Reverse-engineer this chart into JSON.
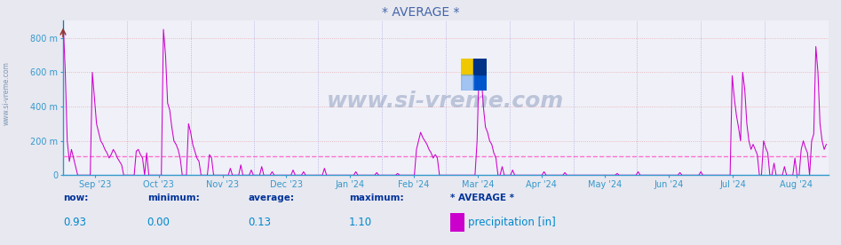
{
  "title": "* AVERAGE *",
  "y_ticks": [
    0,
    200,
    400,
    600,
    800
  ],
  "y_tick_labels": [
    "0",
    "200 m",
    "400 m",
    "600 m",
    "800 m"
  ],
  "ylim": [
    0,
    900
  ],
  "x_tick_labels": [
    "Sep '23",
    "Oct '23",
    "Nov '23",
    "Dec '23",
    "Jan '24",
    "Feb '24",
    "Mar '24",
    "Apr '24",
    "May '24",
    "Jun '24",
    "Jul '24",
    "Aug '24"
  ],
  "line_color": "#cc00cc",
  "average_line_color": "#ff66cc",
  "average_line_value": 113,
  "bg_color": "#e8e8f0",
  "plot_bg_color": "#f0f0f8",
  "grid_h_color": "#e8aaaa",
  "grid_v_color": "#aaaadd",
  "title_color": "#4466aa",
  "axis_color": "#3399cc",
  "spine_color": "#3399cc",
  "watermark": "www.si-vreme.com",
  "watermark_color": "#8899bb",
  "stats_label_color": "#003399",
  "stats_val_color": "#0088cc",
  "stats_labels": [
    "now:",
    "minimum:",
    "average:",
    "maximum:",
    "* AVERAGE *"
  ],
  "stats_values": [
    "0.93",
    "0.00",
    "0.13",
    "1.10"
  ],
  "legend_label": "precipitation [in]",
  "legend_color": "#cc00cc",
  "sidebar_text": "www.si-vreme.com",
  "sidebar_color": "#6688aa",
  "logo_yellow": "#f0c800",
  "logo_blue": "#0055cc",
  "logo_dark": "#003388"
}
